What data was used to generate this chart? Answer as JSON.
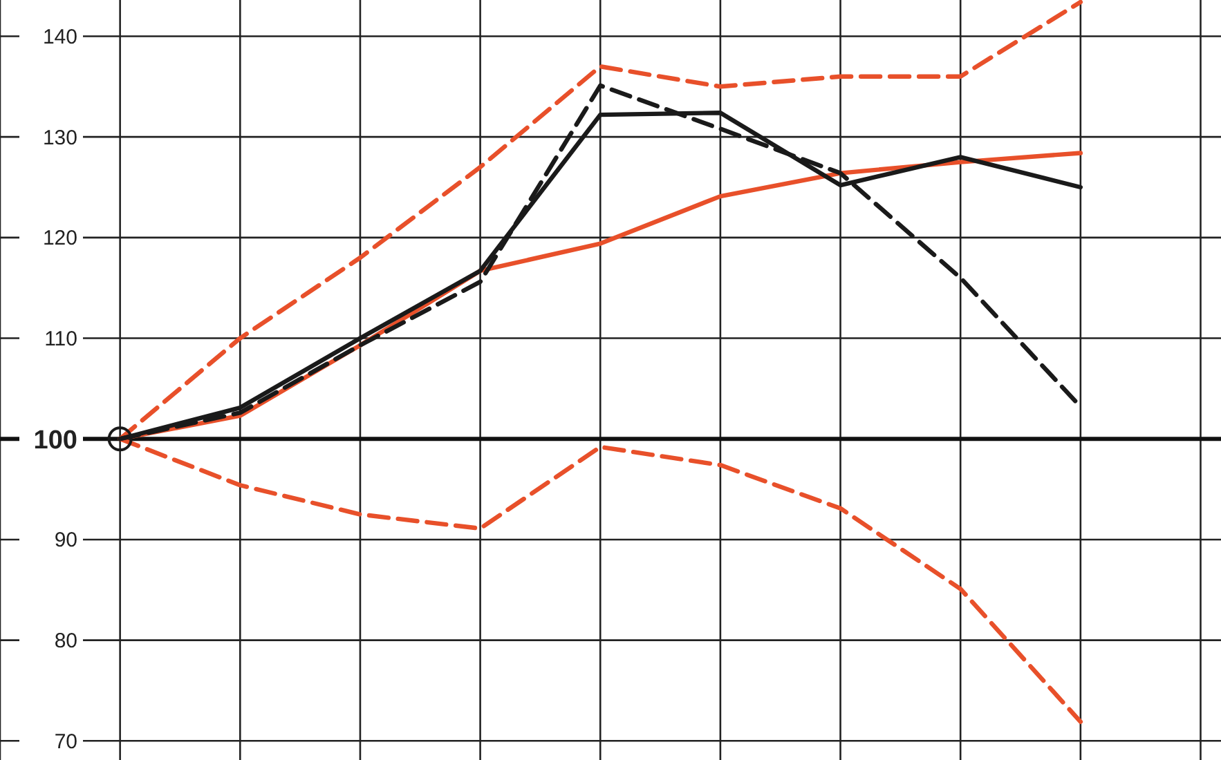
{
  "chart_data": {
    "type": "line",
    "categories": [
      null,
      null,
      null,
      null,
      null,
      null,
      null,
      null,
      null
    ],
    "ylim": [
      68.1,
      143.6
    ],
    "yticks": [
      70,
      80,
      90,
      {
        "value": 100,
        "label": "100"
      },
      110,
      120,
      130,
      140
    ],
    "tick_labels": "y",
    "grid": true,
    "ref_lines": [
      {
        "axis": "y",
        "value": 100,
        "color": "#111111"
      }
    ],
    "series": [
      {
        "color": "#e8502a",
        "line_style": "dashed",
        "values": [
          100,
          110,
          118,
          127,
          137,
          135,
          136,
          136,
          143.4
        ]
      },
      {
        "color": "#e8502a",
        "line_style": "dashed",
        "values": [
          100,
          95.4,
          92.5,
          91.1,
          99.2,
          97.4,
          93.1,
          85.1,
          71.9
        ]
      },
      {
        "color": "#e8502a",
        "line_style": "solid",
        "values": [
          100,
          102.3,
          109.3,
          116.7,
          119.4,
          124.1,
          126.4,
          127.5,
          128.4
        ]
      },
      {
        "color": "#1a1a1a",
        "line_style": "dashed",
        "values": [
          100,
          102.6,
          109.3,
          115.6,
          135.1,
          130.8,
          126.4,
          116,
          103.2
        ]
      },
      {
        "color": "#1a1a1a",
        "line_style": "solid",
        "values": [
          100,
          103.1,
          110,
          116.7,
          132.2,
          132.4,
          125.2,
          128,
          125
        ]
      },
      {
        "type": "scatter",
        "marker": "circle",
        "color": "#1a1a1a",
        "values": [
          100,
          null,
          null,
          null,
          null,
          null,
          null,
          null,
          null
        ]
      }
    ]
  }
}
